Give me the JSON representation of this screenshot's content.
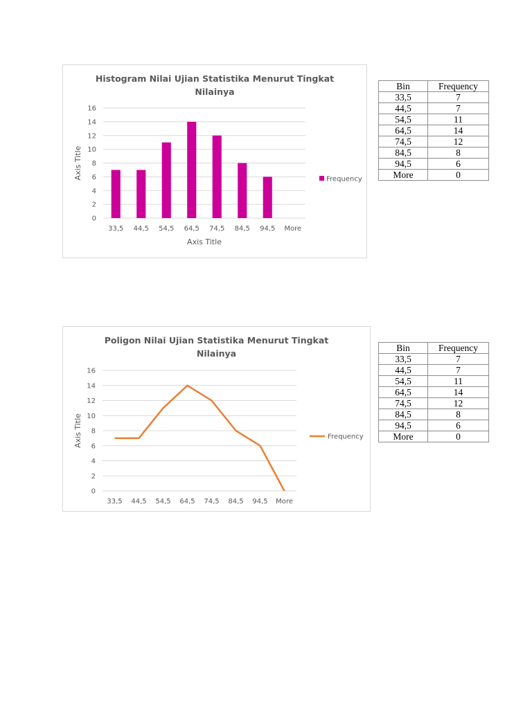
{
  "chart_data": [
    {
      "type": "bar",
      "title": "Histogram Nilai Ujian Statistika Menurut Tingkat Nilainya",
      "xlabel": "Axis Title",
      "ylabel": "Axis Title",
      "categories": [
        "33,5",
        "44,5",
        "54,5",
        "64,5",
        "74,5",
        "84,5",
        "94,5",
        "More"
      ],
      "series": [
        {
          "name": "Frequency",
          "values": [
            7,
            7,
            11,
            14,
            12,
            8,
            6,
            0
          ],
          "color": "#cc0099"
        }
      ],
      "ylim": [
        0,
        16
      ],
      "yticks": [
        0,
        2,
        4,
        6,
        8,
        10,
        12,
        14,
        16
      ],
      "grid": true,
      "legend": "right"
    },
    {
      "type": "line",
      "title": "Poligon Nilai Ujian Statistika Menurut Tingkat Nilainya",
      "xlabel": "",
      "ylabel": "Axis Title",
      "categories": [
        "33,5",
        "44,5",
        "54,5",
        "64,5",
        "74,5",
        "84,5",
        "94,5",
        "More"
      ],
      "series": [
        {
          "name": "Frequency",
          "values": [
            7,
            7,
            11,
            14,
            12,
            8,
            6,
            0
          ],
          "color": "#ed7d31"
        }
      ],
      "ylim": [
        0,
        16
      ],
      "yticks": [
        0,
        2,
        4,
        6,
        8,
        10,
        12,
        14,
        16
      ],
      "grid": true,
      "legend": "right"
    }
  ],
  "tables": [
    {
      "headers": [
        "Bin",
        "Frequency"
      ],
      "rows": [
        [
          "33,5",
          "7"
        ],
        [
          "44,5",
          "7"
        ],
        [
          "54,5",
          "11"
        ],
        [
          "64,5",
          "14"
        ],
        [
          "74,5",
          "12"
        ],
        [
          "84,5",
          "8"
        ],
        [
          "94,5",
          "6"
        ],
        [
          "More",
          "0"
        ]
      ]
    },
    {
      "headers": [
        "Bin",
        "Frequency"
      ],
      "rows": [
        [
          "33,5",
          "7"
        ],
        [
          "44,5",
          "7"
        ],
        [
          "54,5",
          "11"
        ],
        [
          "64,5",
          "14"
        ],
        [
          "74,5",
          "12"
        ],
        [
          "84,5",
          "8"
        ],
        [
          "94,5",
          "6"
        ],
        [
          "More",
          "0"
        ]
      ]
    }
  ],
  "colors": {
    "grid": "#d9d9d9",
    "axis_text": "#595959",
    "border": "#d9d9d9"
  }
}
